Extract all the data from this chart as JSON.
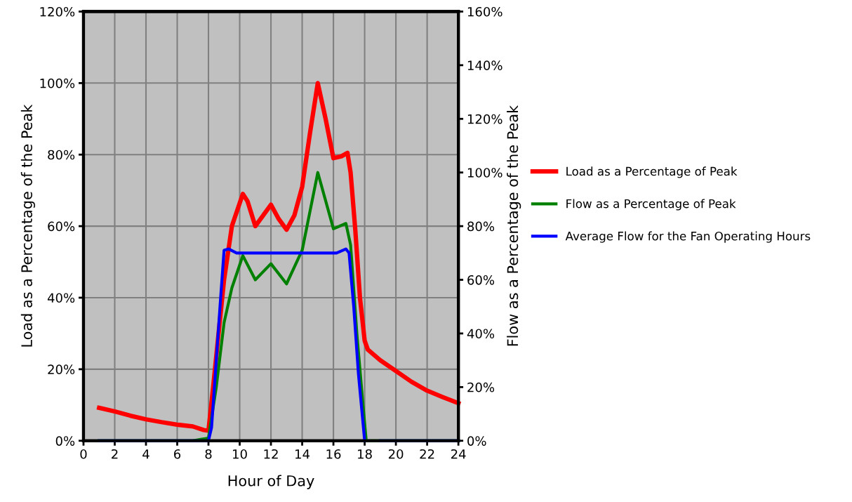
{
  "chart_data": {
    "type": "line",
    "xlabel": "Hour of Day",
    "ylabel": "Load as a Percentage of the Peak",
    "y2label": "Flow as a Percentage of the Peak",
    "xlim": [
      0,
      24
    ],
    "xticks": [
      0,
      2,
      4,
      6,
      8,
      10,
      12,
      14,
      16,
      18,
      20,
      22,
      24
    ],
    "ylim": [
      0,
      120
    ],
    "yticks": [
      {
        "value": 0,
        "label": "0%"
      },
      {
        "value": 20,
        "label": "20%"
      },
      {
        "value": 40,
        "label": "40%"
      },
      {
        "value": 60,
        "label": "60%"
      },
      {
        "value": 80,
        "label": "80%"
      },
      {
        "value": 100,
        "label": "100%"
      },
      {
        "value": 120,
        "label": "120%"
      }
    ],
    "y2lim": [
      0,
      160
    ],
    "y2ticks": [
      {
        "value": 0,
        "label": "0%"
      },
      {
        "value": 20,
        "label": "20%"
      },
      {
        "value": 40,
        "label": "40%"
      },
      {
        "value": 60,
        "label": "60%"
      },
      {
        "value": 80,
        "label": "80%"
      },
      {
        "value": 100,
        "label": "100%"
      },
      {
        "value": 120,
        "label": "120%"
      },
      {
        "value": 140,
        "label": "140%"
      },
      {
        "value": 160,
        "label": "160%"
      }
    ],
    "grid": true,
    "legend": "right",
    "marker": "none",
    "line_style": "solid",
    "series": [
      {
        "name": "Load as a Percentage of Peak",
        "color": "#ff0000",
        "x": [
          1,
          2,
          3,
          4,
          5,
          6,
          7,
          7.7,
          8,
          8.3,
          8.6,
          9,
          9.5,
          10.2,
          10.5,
          11,
          11.5,
          12,
          12.5,
          13,
          13.5,
          14,
          14.5,
          15,
          15.5,
          16,
          16.5,
          16.9,
          17.1,
          17.4,
          17.7,
          18,
          18.2,
          19,
          20,
          21,
          22,
          23,
          24
        ],
        "values": [
          9.2,
          8.2,
          7,
          6,
          5.2,
          4.5,
          4,
          3,
          2.8,
          15,
          28,
          45,
          60,
          69,
          67,
          60,
          63,
          66,
          62,
          59,
          63,
          71,
          86,
          100,
          90,
          79,
          79.5,
          80.5,
          75,
          59,
          40,
          28,
          25.5,
          22.5,
          19.5,
          16.5,
          14,
          12.2,
          10.5
        ]
      },
      {
        "name": "Flow as a Percentage of Peak",
        "color": "#008000",
        "axis": "y2",
        "x": [
          1,
          7,
          7.5,
          8,
          8.5,
          9,
          9.5,
          10.2,
          11,
          12,
          13,
          14,
          15,
          16,
          16.8,
          17.1,
          17.5,
          17.9,
          18.1,
          24
        ],
        "values": [
          0,
          0,
          0.5,
          1,
          20,
          44,
          57,
          69,
          60,
          66,
          58.5,
          71,
          100,
          79,
          81,
          73,
          40,
          13,
          0,
          0
        ]
      },
      {
        "name": "Average Flow for the Fan Operating Hours",
        "color": "#0000ff",
        "axis": "y2",
        "x": [
          1,
          8,
          8.2,
          8.5,
          8.8,
          9,
          9.3,
          9.8,
          16.2,
          16.8,
          17,
          17.3,
          17.6,
          18,
          18.5,
          19,
          24
        ],
        "values": [
          0,
          0,
          5,
          30,
          55,
          71,
          71.5,
          70,
          70,
          71.5,
          70,
          50,
          25,
          0,
          null,
          0,
          0
        ]
      }
    ]
  }
}
